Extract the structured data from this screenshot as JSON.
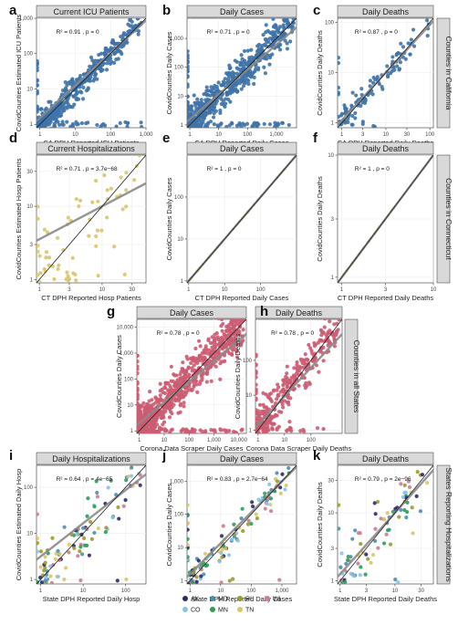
{
  "colors": {
    "california": "#3f73a9",
    "connecticut": "#d7c66c",
    "states": "#cc5c72",
    "reg_line": "#8a8a8a",
    "identity_line": "#222222",
    "strip_bg": "#d9d9d9",
    "grid": "#ececec"
  },
  "strips": {
    "california": "Counties in California",
    "connecticut": "Counties in Connecticut",
    "all_states": "Counties in all States",
    "reporting": "States Reporting Hospitalizations"
  },
  "legend": [
    {
      "code": "AK",
      "color": "#2c2a6e"
    },
    {
      "code": "CO",
      "color": "#86c3e6"
    },
    {
      "code": "MD",
      "color": "#4a8fb0"
    },
    {
      "code": "MN",
      "color": "#2f9b5a"
    },
    {
      "code": "RI",
      "color": "#9a9a2c"
    },
    {
      "code": "TN",
      "color": "#d9c56b"
    },
    {
      "code": "WI",
      "color": "#c9808f"
    }
  ],
  "chart_data": [
    {
      "id": "a",
      "type": "scatter",
      "title": "Current ICU Patients",
      "xlabel": "CA DPH Reported ICU Patients",
      "ylabel": "CovidCounties Estimated ICU Patients",
      "stat": "R² = 0.91 , p = 0",
      "xlim": [
        0.8,
        1000
      ],
      "ylim": [
        0.8,
        1000
      ],
      "xticks": [
        1,
        10,
        100,
        1000
      ],
      "xticklabels": [
        "1",
        "10",
        "100",
        "1,000"
      ],
      "yticks": [
        1,
        10,
        100,
        1000
      ],
      "yticklabels": [
        "1",
        "10",
        "100",
        "1,000"
      ],
      "trend": [
        0.92,
        0.18
      ]
    },
    {
      "id": "b",
      "type": "scatter",
      "title": "Daily Cases",
      "xlabel": "CA DPH Reported Daily Cases",
      "ylabel": "CovidCounties Daily Cases",
      "stat": "R² = 0.71 , p = 0",
      "xlim": [
        0.8,
        5000
      ],
      "ylim": [
        0.8,
        5000
      ],
      "xticks": [
        1,
        10,
        100,
        1000
      ],
      "xticklabels": [
        "1",
        "10",
        "100",
        "1,000"
      ],
      "yticks": [
        1,
        10,
        100,
        1000
      ],
      "yticklabels": [
        "1",
        "10",
        "100",
        "1,000"
      ],
      "trend": [
        0.86,
        0.2
      ]
    },
    {
      "id": "c",
      "type": "scatter",
      "title": "Daily Deaths",
      "xlabel": "CA DPH Reported Daily Deaths",
      "ylabel": "CovidCounties Daily Deaths",
      "stat": "R² = 0.87 , p = 0",
      "xlim": [
        0.8,
        120
      ],
      "ylim": [
        0.8,
        120
      ],
      "xticks": [
        1,
        3,
        10,
        30,
        100
      ],
      "xticklabels": [
        "1",
        "3",
        "10",
        "30",
        "100"
      ],
      "yticks": [
        1,
        10,
        100
      ],
      "yticklabels": [
        "1",
        "10",
        "100"
      ],
      "trend": [
        0.95,
        0.05
      ]
    },
    {
      "id": "d",
      "type": "scatter",
      "title": "Current Hospitalizations",
      "xlabel": "CT DPH Reported Hosp Patients",
      "ylabel": "CovidCounties Estimated Hosp Patients",
      "stat": "R² = 0.71 , p = 3.7e−68",
      "xlim": [
        0.9,
        50
      ],
      "ylim": [
        0.9,
        50
      ],
      "xticks": [
        1,
        3,
        10,
        30
      ],
      "xticklabels": [
        "1",
        "3",
        "10",
        "30"
      ],
      "yticks": [
        1,
        3,
        10,
        30
      ],
      "yticklabels": [
        "1",
        "3",
        "10",
        "30"
      ],
      "trend": [
        0.45,
        0.55
      ]
    },
    {
      "id": "e",
      "type": "scatter",
      "title": "Daily Cases",
      "xlabel": "CT DPH Reported Daily Cases",
      "ylabel": "CovidCounties Daily Cases",
      "stat": "R² = 1 , p = 0",
      "xlim": [
        0.9,
        1000
      ],
      "ylim": [
        0.9,
        1000
      ],
      "xticks": [
        1,
        10,
        100
      ],
      "xticklabels": [
        "1",
        "10",
        "100"
      ],
      "yticks": [
        1,
        10,
        100
      ],
      "yticklabels": [
        "1",
        "10",
        "100"
      ],
      "trend": [
        1,
        0
      ]
    },
    {
      "id": "f",
      "type": "scatter",
      "title": "Daily Deaths",
      "xlabel": "CT DPH Reported Daily Deaths",
      "ylabel": "CovidCounties Daily Deaths",
      "stat": "R² = 1 , p = 0",
      "xlim": [
        0.9,
        10
      ],
      "ylim": [
        0.9,
        10
      ],
      "xticks": [
        1,
        3,
        10
      ],
      "xticklabels": [
        "1",
        "3",
        "10"
      ],
      "yticks": [
        1,
        3,
        10
      ],
      "yticklabels": [
        "1",
        "3",
        "10"
      ],
      "trend": [
        1,
        0
      ]
    },
    {
      "id": "g",
      "type": "scatter",
      "title": "Daily Cases",
      "xlabel": "Corona Data Scraper Daily Cases",
      "ylabel": "CovidCounties Daily Cases",
      "stat": "R² = 0.78 , p = 0",
      "xlim": [
        0.8,
        20000
      ],
      "ylim": [
        0.8,
        20000
      ],
      "xticks": [
        1,
        10,
        100,
        1000,
        10000
      ],
      "xticklabels": [
        "1",
        "10",
        "100",
        "1,000",
        "10,000"
      ],
      "yticks": [
        1,
        10,
        100,
        1000,
        10000
      ],
      "yticklabels": [
        "1",
        "10",
        "100",
        "1,000",
        "10,000"
      ],
      "trend": [
        0.8,
        0.3
      ]
    },
    {
      "id": "h",
      "type": "scatter",
      "title": "Daily Deaths",
      "xlabel": "Corona Data Scraper Daily Deaths",
      "ylabel": "CovidCounties Daily Deaths",
      "stat": "R² = 0.78 , p = 0",
      "xlim": [
        0.8,
        1500
      ],
      "ylim": [
        0.8,
        1500
      ],
      "xticks": [
        1,
        10,
        100
      ],
      "xticklabels": [
        "1",
        "10",
        "100"
      ],
      "yticks": [
        1,
        10,
        100
      ],
      "yticklabels": [
        "1",
        "10",
        "100"
      ],
      "trend": [
        0.82,
        0.15
      ]
    },
    {
      "id": "i",
      "type": "scatter",
      "title": "Daily Hospitalizations",
      "xlabel": "State DPH Reported Daily Hosp",
      "ylabel": "CovidCounties Estimated Daily Hosp",
      "stat": "R² = 0.64 , p = 4e−65",
      "xlim": [
        0.8,
        300
      ],
      "ylim": [
        0.8,
        300
      ],
      "xticks": [
        1,
        10,
        100
      ],
      "xticklabels": [
        "1",
        "10",
        "100"
      ],
      "yticks": [
        1,
        10,
        100
      ],
      "yticklabels": [
        "1",
        "10",
        "100"
      ],
      "trend": [
        0.72,
        0.5
      ]
    },
    {
      "id": "j",
      "type": "scatter",
      "title": "Daily Cases",
      "xlabel": "State DPH Reported Daily Cases",
      "ylabel": "CovidCounties Daily Cases",
      "stat": "R² = 0.83 , p = 2.7e−64",
      "xlim": [
        0.8,
        3000
      ],
      "ylim": [
        0.8,
        3000
      ],
      "xticks": [
        1,
        10,
        100,
        1000
      ],
      "xticklabels": [
        "1",
        "10",
        "100",
        "1,000"
      ],
      "yticks": [
        1,
        10,
        100,
        1000
      ],
      "yticklabels": [
        "1",
        "10",
        "100",
        "1,000"
      ],
      "trend": [
        0.93,
        0.2
      ]
    },
    {
      "id": "k",
      "type": "scatter",
      "title": "Daily Deaths",
      "xlabel": "State DPH Reported Daily Deaths",
      "ylabel": "CovidCounties Daily Deaths",
      "stat": "R² = 0.79 , p = 2e−96",
      "xlim": [
        0.9,
        50
      ],
      "ylim": [
        0.9,
        50
      ],
      "xticks": [
        1,
        3,
        10,
        30
      ],
      "xticklabels": [
        "1",
        "3",
        "10",
        "30"
      ],
      "yticks": [
        1,
        3,
        10,
        30
      ],
      "yticklabels": [
        "1",
        "3",
        "10",
        "30"
      ],
      "trend": [
        0.9,
        0.1
      ]
    }
  ]
}
